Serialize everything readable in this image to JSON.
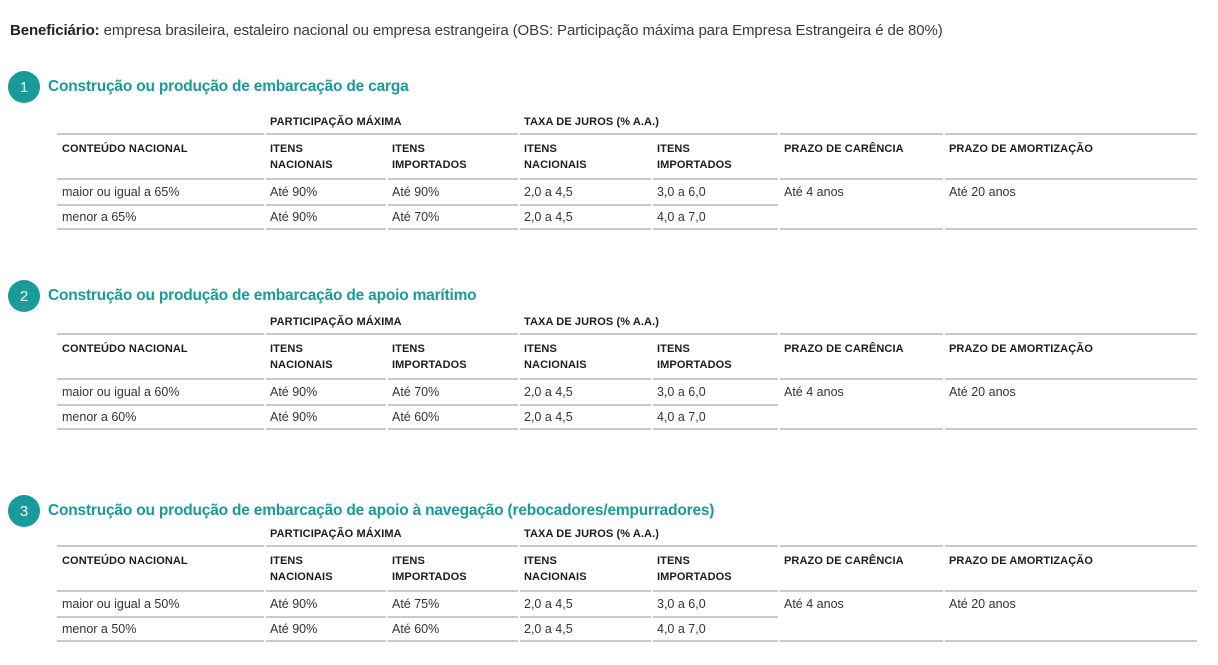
{
  "page": {
    "beneficiary_label": "Beneficiário:",
    "beneficiary_text": " empresa brasileira, estaleiro nacional ou empresa estrangeira (OBS: Participação máxima para Empresa Estrangeira é de 80%)"
  },
  "colors": {
    "accent_teal": "#199a9b",
    "rule_gray": "#c9c9c9",
    "text_dark": "#333333"
  },
  "table_headers": {
    "group_participacao": "PARTICIPAÇÃO MÁXIMA",
    "group_taxa": "TAXA DE JUROS (% A.A.)",
    "col_conteudo": "CONTEÚDO NACIONAL",
    "col_itens_nacionais": "ITENS\nNACIONAIS",
    "col_itens_importados": "ITENS\nIMPORTADOS",
    "col_prazo_carencia": "PRAZO DE CARÊNCIA",
    "col_prazo_amortizacao": "PRAZO DE AMORTIZAÇÃO"
  },
  "sections": [
    {
      "number": "1",
      "title": "Construção ou produção de embarcação de carga",
      "rows": [
        {
          "conteudo": "maior ou igual a 65%",
          "part_nac": "Até 90%",
          "part_imp": "Até 90%",
          "juros_nac": "2,0 a 4,5",
          "juros_imp": "3,0 a 6,0"
        },
        {
          "conteudo": "menor a 65%",
          "part_nac": "Até 90%",
          "part_imp": "Até 70%",
          "juros_nac": "2,0 a 4,5",
          "juros_imp": "4,0 a 7,0"
        }
      ],
      "prazo_carencia": "Até 4 anos",
      "prazo_amortizacao": "Até 20 anos"
    },
    {
      "number": "2",
      "title": "Construção ou produção de embarcação de apoio marítimo",
      "rows": [
        {
          "conteudo": "maior ou igual a 60%",
          "part_nac": "Até 90%",
          "part_imp": "Até 70%",
          "juros_nac": "2,0 a 4,5",
          "juros_imp": "3,0 a 6,0"
        },
        {
          "conteudo": "menor a 60%",
          "part_nac": "Até 90%",
          "part_imp": "Até 60%",
          "juros_nac": "2,0 a 4,5",
          "juros_imp": "4,0 a 7,0"
        }
      ],
      "prazo_carencia": "Até 4 anos",
      "prazo_amortizacao": "Até 20 anos"
    },
    {
      "number": "3",
      "title": "Construção ou produção de embarcação de apoio à navegação (rebocadores/empurradores)",
      "rows": [
        {
          "conteudo": "maior ou igual a 50%",
          "part_nac": "Até 90%",
          "part_imp": "Até 75%",
          "juros_nac": "2,0 a 4,5",
          "juros_imp": "3,0 a 6,0"
        },
        {
          "conteudo": "menor a 50%",
          "part_nac": "Até 90%",
          "part_imp": "Até 60%",
          "juros_nac": "2,0 a 4,5",
          "juros_imp": "4,0 a 7,0"
        }
      ],
      "prazo_carencia": "Até 4 anos",
      "prazo_amortizacao": "Até 20 anos"
    }
  ]
}
